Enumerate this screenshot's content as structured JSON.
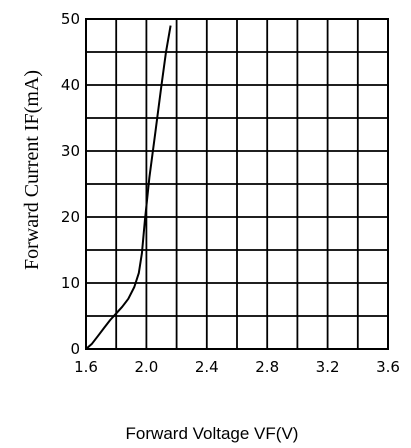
{
  "chart_data": {
    "type": "line",
    "title": "",
    "xlabel": "Forward Voltage VF(V)",
    "ylabel": "Forward Current IF(mA)",
    "xlim": [
      1.6,
      3.6
    ],
    "ylim": [
      0,
      50
    ],
    "xticks": [
      "1.6",
      "2.0",
      "2.4",
      "2.8",
      "3.2",
      "3.6"
    ],
    "yticks": [
      "0",
      "10",
      "20",
      "30",
      "40",
      "50"
    ],
    "grid": true,
    "series": [
      {
        "x": [
          1.6,
          1.64,
          1.68,
          1.72,
          1.76,
          1.8,
          1.84,
          1.88,
          1.92,
          1.95,
          1.97,
          1.99,
          2.02,
          2.06,
          2.1,
          2.13,
          2.16
        ],
        "y": [
          0,
          0.8,
          2.0,
          3.2,
          4.4,
          5.4,
          6.4,
          7.6,
          9.4,
          11.5,
          14.5,
          19.5,
          26,
          33,
          40,
          45,
          49
        ]
      }
    ]
  }
}
